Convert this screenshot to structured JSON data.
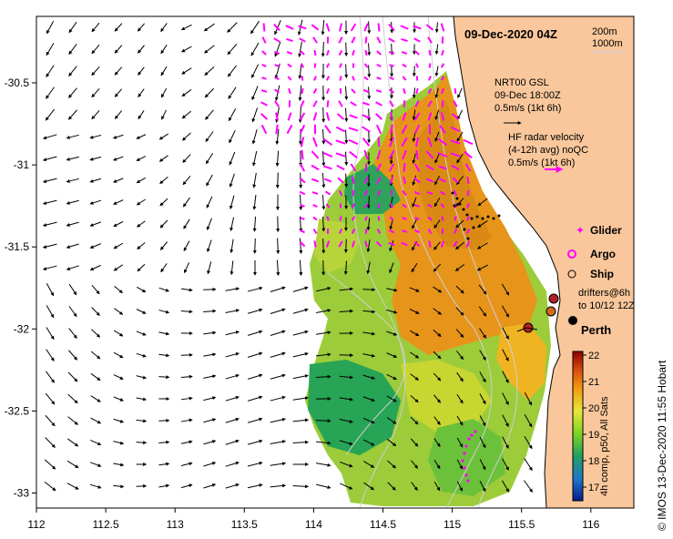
{
  "title": "09-Dec-2020 04Z",
  "scale_labels": [
    "200m",
    "1000m"
  ],
  "x_axis": {
    "ticks": [
      "112",
      "112.5",
      "113",
      "113.5",
      "114",
      "114.5",
      "115",
      "115.5",
      "116"
    ],
    "range": [
      112,
      116.3
    ]
  },
  "y_axis": {
    "ticks": [
      "-30.5",
      "-31",
      "-31.5",
      "-32",
      "-32.5",
      "-33"
    ],
    "range": [
      -33.1,
      -30.1
    ]
  },
  "wind_legend": {
    "lines": [
      "NRT00 GSL",
      "09-Dec 18:00Z",
      "0.5m/s (1kt 6h)"
    ]
  },
  "hf_legend": {
    "lines": [
      "HF radar velocity",
      "(4-12h avg) noQC",
      "0.5m/s (1kt 6h)"
    ]
  },
  "legend": {
    "glider": "Glider",
    "argo": "Argo",
    "ship": "Ship",
    "drifters": [
      "drifters@6h",
      "to 10/12 12Z"
    ]
  },
  "city": "Perth",
  "colorbar": {
    "ticks": [
      "22",
      "21",
      "20",
      "19",
      "18",
      "17"
    ],
    "label": "4h comp, p50, All Sats"
  },
  "credit": "© IMOS 13-Dec-2020 11:55 Hobart",
  "colors": {
    "land": "#f9c79b",
    "glider": "#ff00ff",
    "drifter": "#b22222",
    "coast": "#000000"
  }
}
